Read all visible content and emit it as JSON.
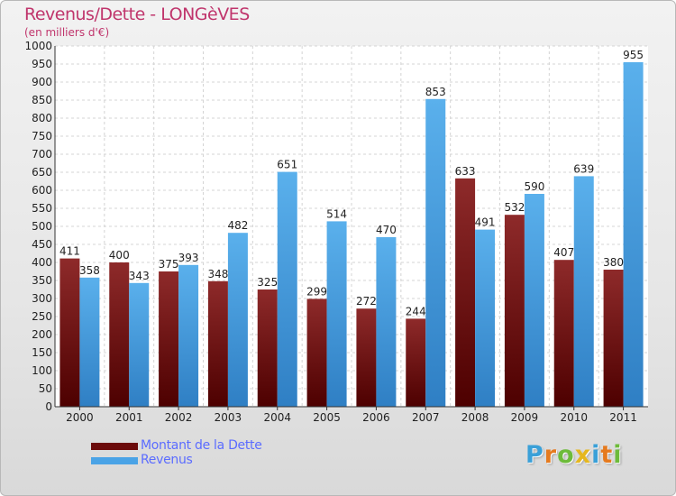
{
  "header": {
    "title": "Revenus/Dette - LONGèVES",
    "subtitle": "(en milliers d'€)"
  },
  "legend": {
    "items": [
      {
        "label": "Montant de la Dette",
        "color": "#6b0a0a"
      },
      {
        "label": "Revenus",
        "color": "#4aa3e6"
      }
    ]
  },
  "logo": {
    "text": "Proxiti",
    "letter_colors": [
      "#3aa0d8",
      "#e57a1e",
      "#6dbb3a",
      "#e5b71e",
      "#3aa0d8",
      "#e57a1e",
      "#6dbb3a"
    ]
  },
  "chart_data": {
    "type": "bar",
    "categories": [
      "2000",
      "2001",
      "2002",
      "2003",
      "2004",
      "2005",
      "2006",
      "2007",
      "2008",
      "2009",
      "2010",
      "2011"
    ],
    "series": [
      {
        "name": "Montant de la Dette",
        "values": [
          411,
          400,
          375,
          348,
          325,
          299,
          272,
          244,
          633,
          532,
          407,
          380
        ],
        "color": "#7a1414"
      },
      {
        "name": "Revenus",
        "values": [
          358,
          343,
          393,
          482,
          651,
          514,
          470,
          853,
          491,
          590,
          639,
          955
        ],
        "color": "#4aa3e6"
      }
    ],
    "ylim": [
      0,
      1000
    ],
    "yticks": [
      0,
      50,
      100,
      150,
      200,
      250,
      300,
      350,
      400,
      450,
      500,
      550,
      600,
      650,
      700,
      750,
      800,
      850,
      900,
      950,
      1000
    ],
    "title": "Revenus/Dette - LONGèVES",
    "ylabel": "(en milliers d'€)",
    "grid": true,
    "legend_position": "bottom-left"
  }
}
